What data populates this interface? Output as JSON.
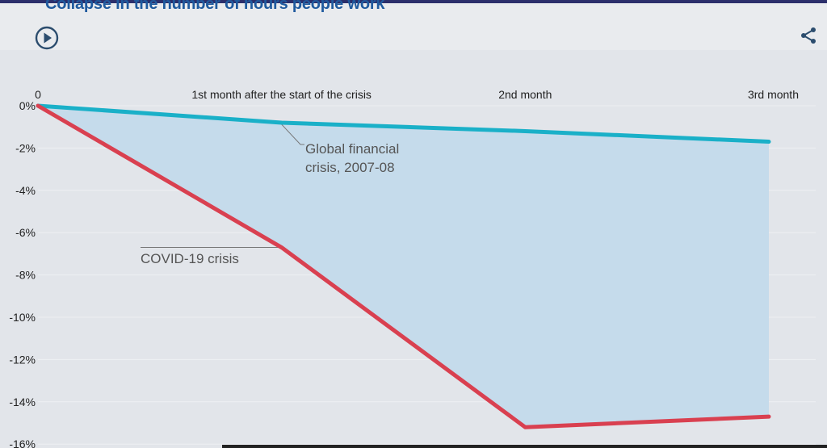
{
  "title": "Collapse in the number of hours people work",
  "icons": {
    "play": "play-icon",
    "share": "share-icon"
  },
  "colors": {
    "covid": "#d94050",
    "gfc": "#1ab0c8",
    "fill": "#c5dbeb",
    "title": "#1f5a9e"
  },
  "chart_data": {
    "type": "line",
    "categories": [
      "0",
      "1st month after the start of the crisis",
      "2nd month",
      "3rd month"
    ],
    "x": [
      0,
      1,
      2,
      3
    ],
    "ylim": [
      -16,
      0
    ],
    "yticks": [
      0,
      -2,
      -4,
      -6,
      -8,
      -10,
      -12,
      -14,
      -16
    ],
    "ytick_labels": [
      "0%",
      "-2%",
      "-4%",
      "-6%",
      "-8%",
      "-10%",
      "-12%",
      "-14%",
      "-16%"
    ],
    "x_axis_position": "top",
    "grid": true,
    "series": [
      {
        "name": "Global financial crisis, 2007-08",
        "values": [
          0,
          -0.8,
          -1.2,
          -1.7
        ]
      },
      {
        "name": "COVID-19 crisis",
        "values": [
          0,
          -6.7,
          -15.2,
          -14.7
        ]
      }
    ],
    "shaded_between_series": true,
    "annotations": [
      {
        "text": "Global financial crisis, 2007-08",
        "lines": [
          "Global financial",
          "crisis, 2007-08"
        ],
        "series": 0,
        "x": 1
      },
      {
        "text": "COVID-19 crisis",
        "lines": [
          "COVID-19 crisis"
        ],
        "series": 1,
        "x": 1
      }
    ]
  }
}
